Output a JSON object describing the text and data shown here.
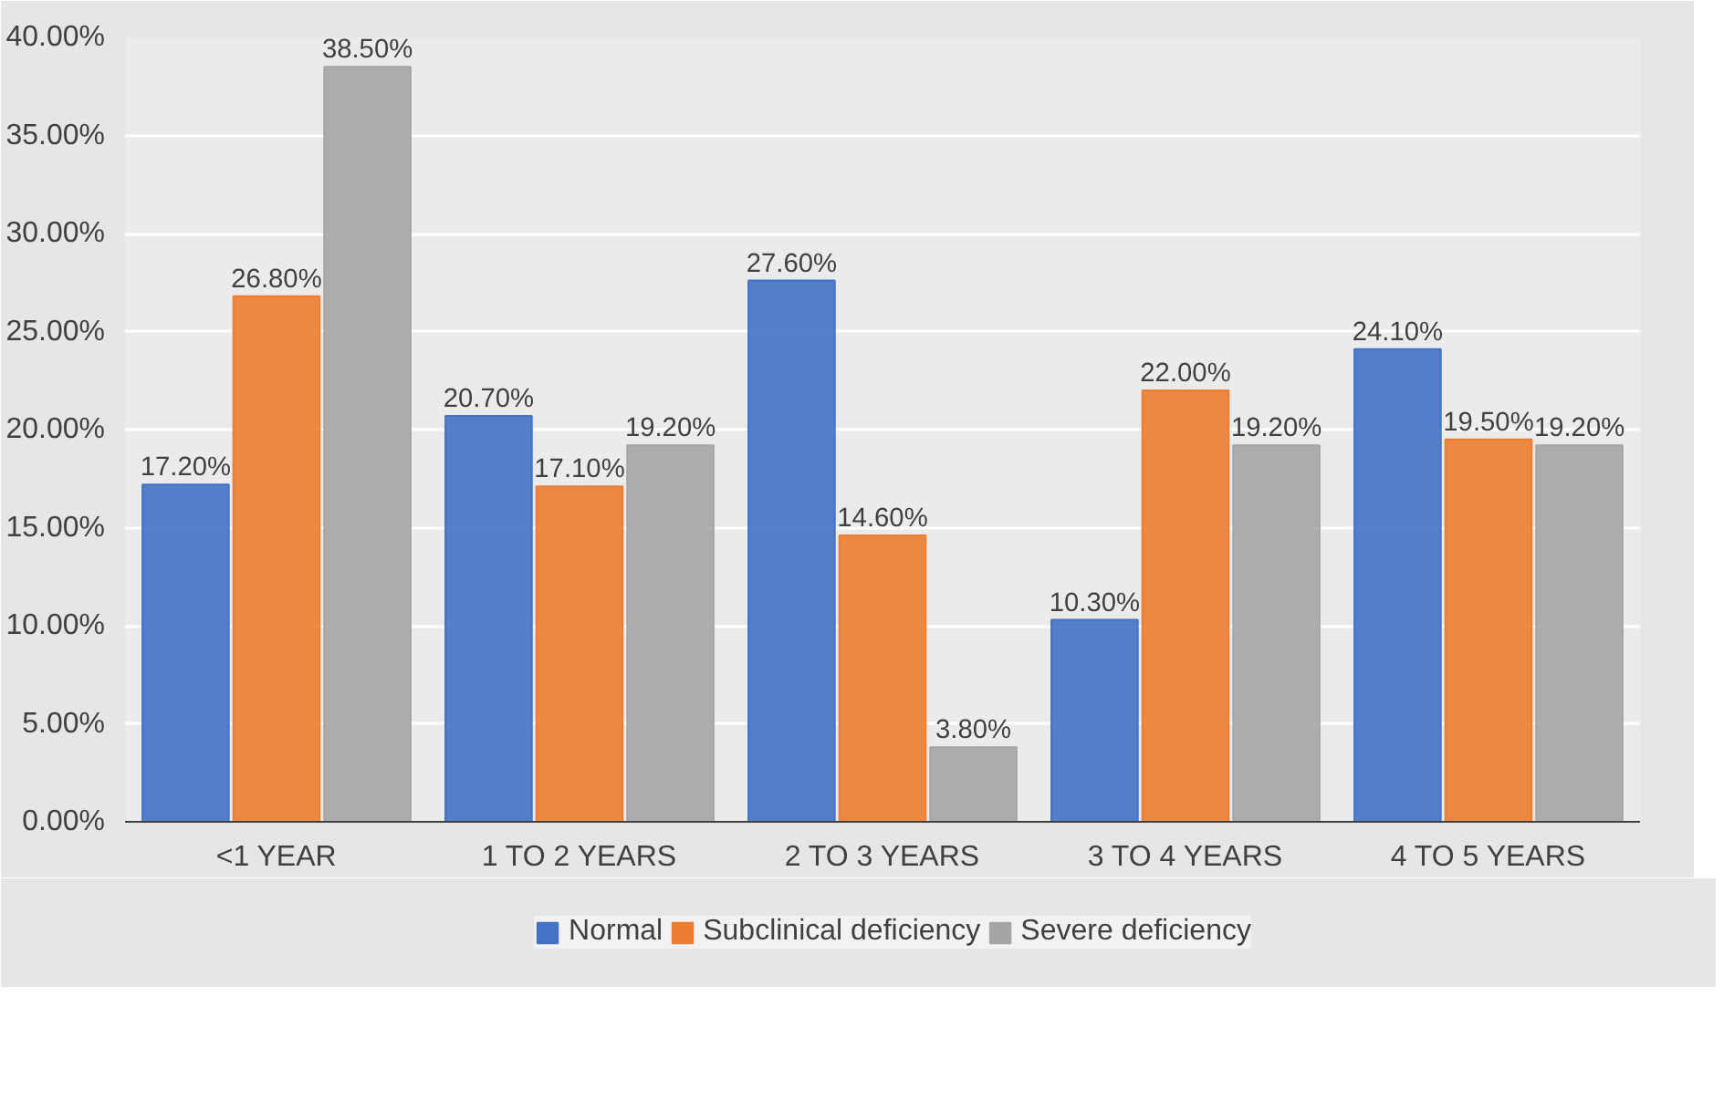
{
  "chart_data": {
    "type": "bar",
    "categories": [
      "<1 YEAR",
      "1 TO 2 YEARS",
      "2 TO 3 YEARS",
      "3 TO 4 YEARS",
      "4 TO 5 YEARS"
    ],
    "series": [
      {
        "name": "Normal",
        "color": "#4472c4",
        "values": [
          17.2,
          20.7,
          27.6,
          10.3,
          24.1
        ],
        "value_labels": [
          "17.20%",
          "20.70%",
          "27.60%",
          "10.30%",
          "24.10%"
        ]
      },
      {
        "name": "Subclinical deficiency",
        "color": "#ed7d31",
        "values": [
          26.8,
          17.1,
          14.6,
          22.0,
          19.5
        ],
        "value_labels": [
          "26.80%",
          "17.10%",
          "14.60%",
          "22.00%",
          "19.50%"
        ]
      },
      {
        "name": "Severe deficiency",
        "color": "#a5a5a5",
        "values": [
          38.5,
          19.2,
          3.8,
          19.2,
          19.2
        ],
        "value_labels": [
          "38.50%",
          "19.20%",
          "3.80%",
          "19.20%",
          "19.20%"
        ]
      }
    ],
    "ylim": [
      0,
      40
    ],
    "yticks": [
      {
        "value": 0,
        "label": "0.00%"
      },
      {
        "value": 5,
        "label": "5.00%"
      },
      {
        "value": 10,
        "label": "10.00%"
      },
      {
        "value": 15,
        "label": "15.00%"
      },
      {
        "value": 20,
        "label": "20.00%"
      },
      {
        "value": 25,
        "label": "25.00%"
      },
      {
        "value": 30,
        "label": "30.00%"
      },
      {
        "value": 35,
        "label": "35.00%"
      },
      {
        "value": 40,
        "label": "40.00%"
      }
    ],
    "grid": "y",
    "legend": "bottom"
  }
}
